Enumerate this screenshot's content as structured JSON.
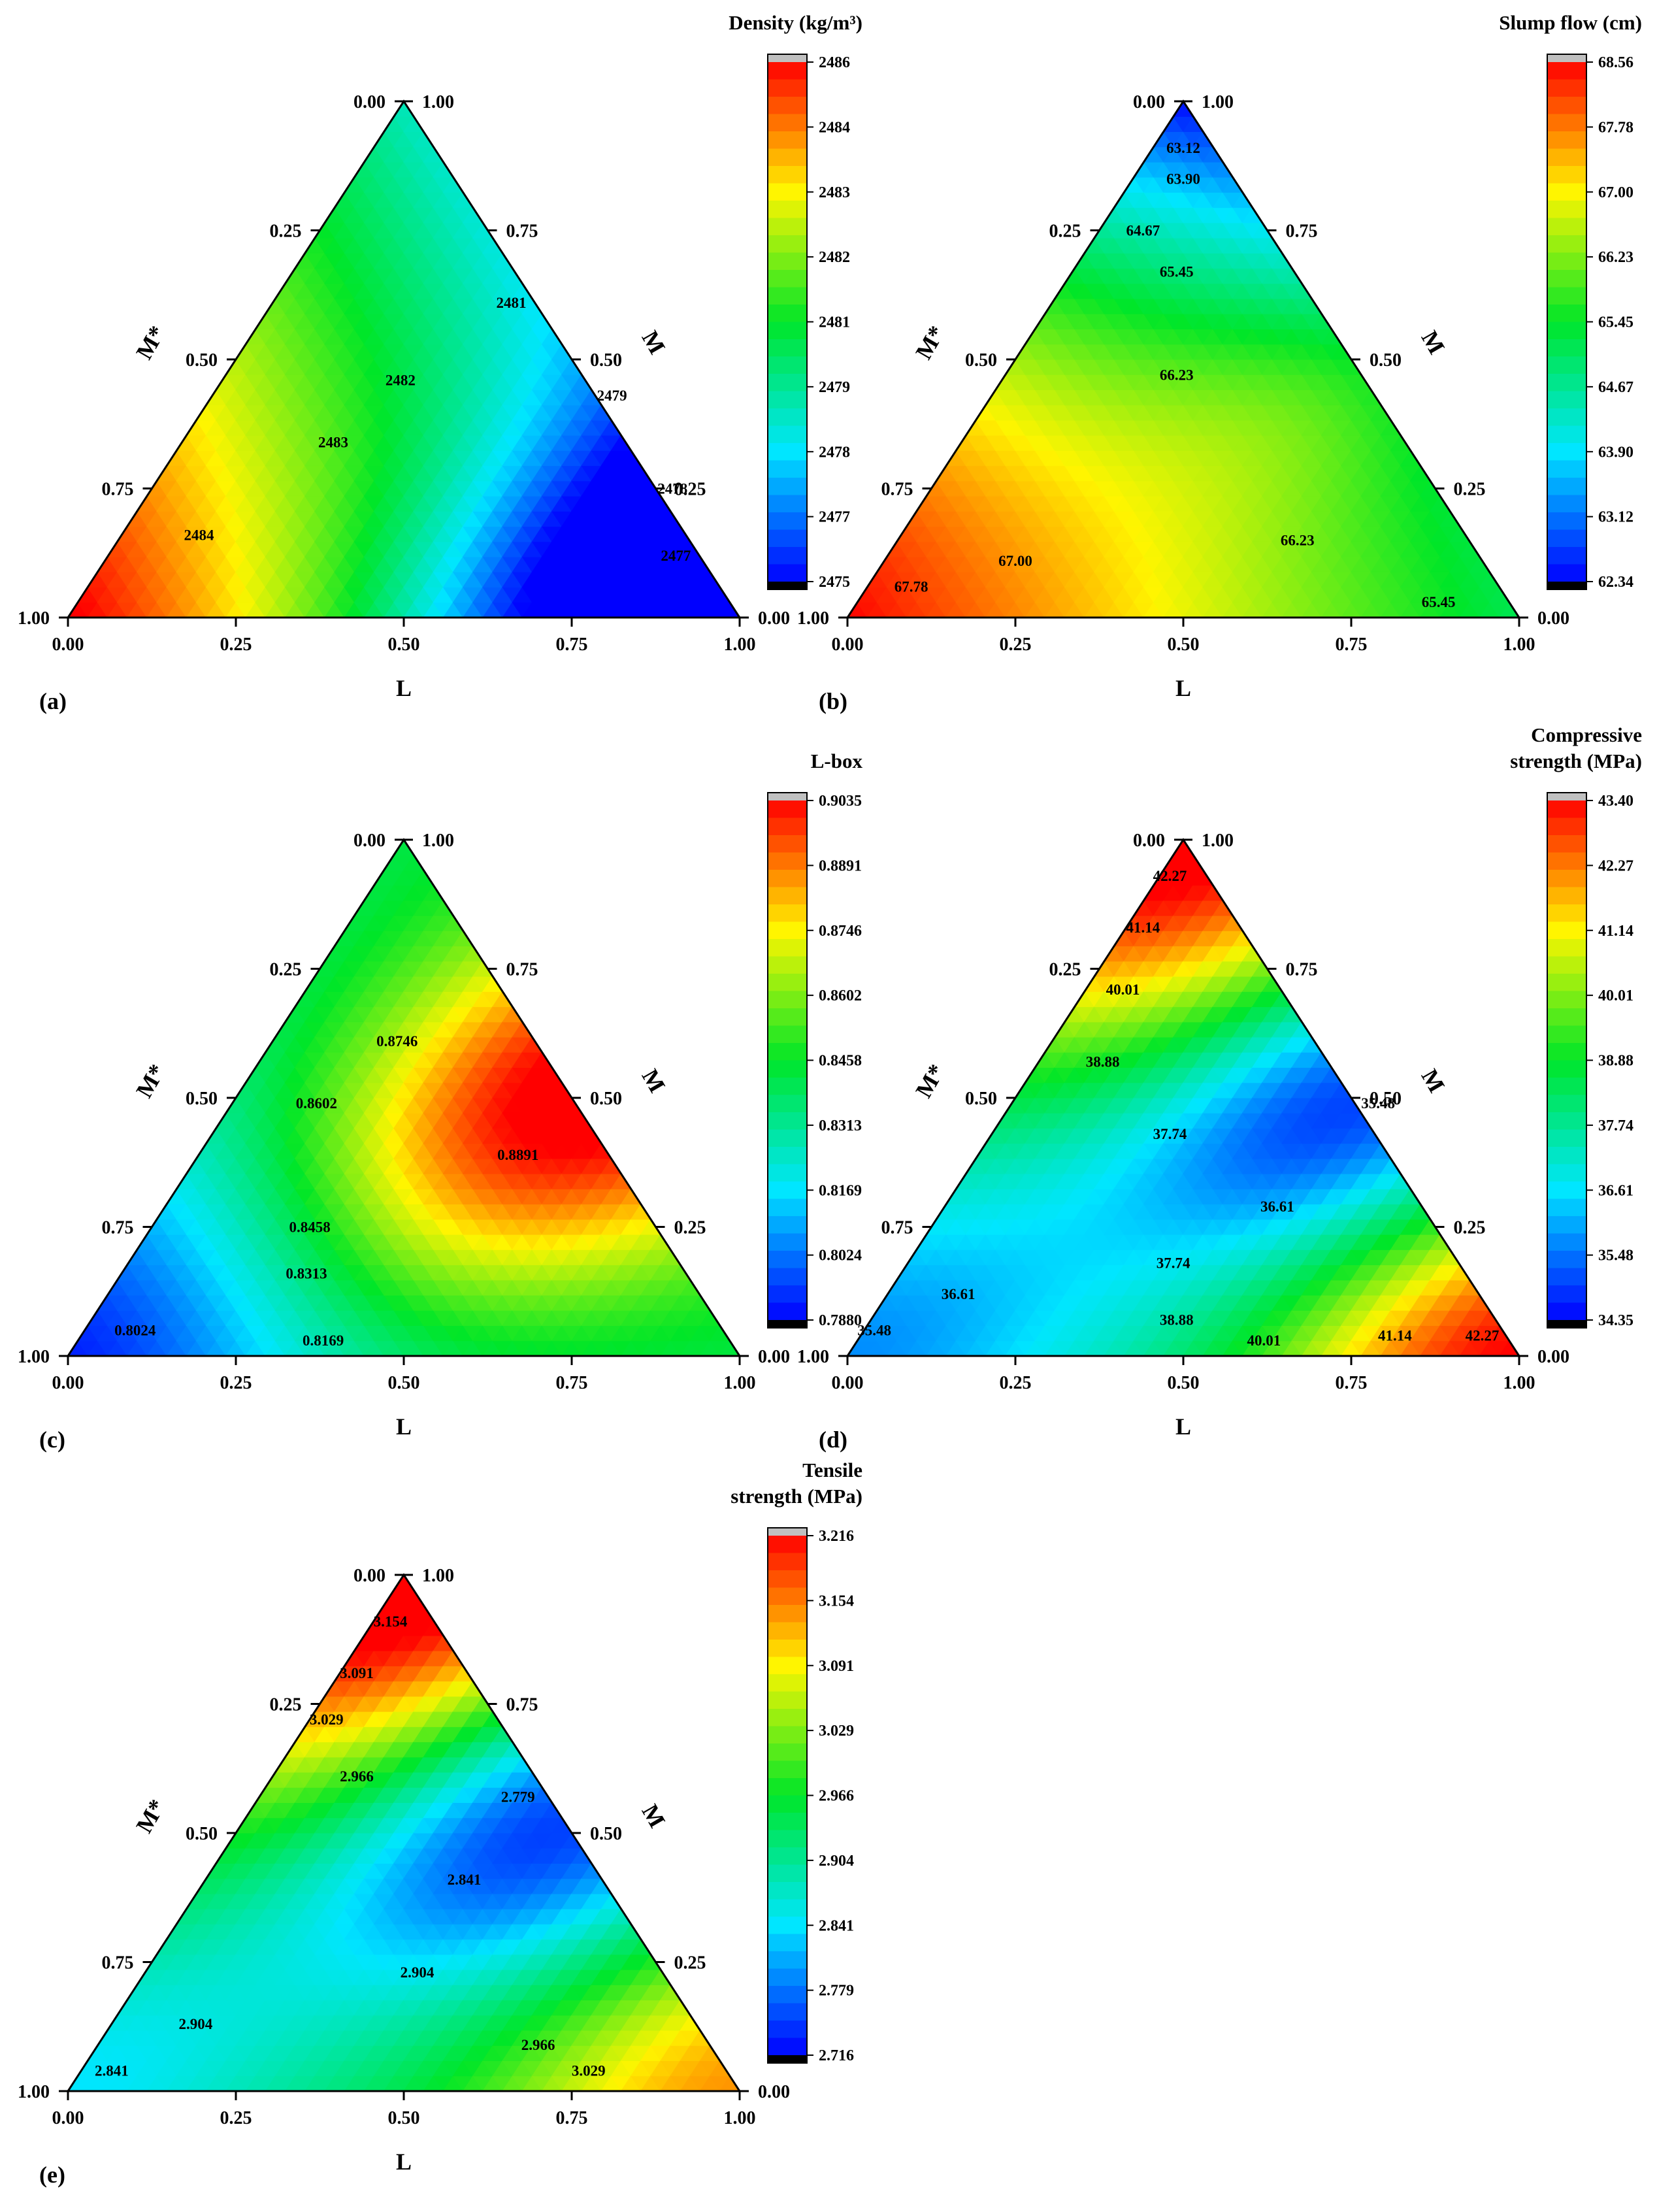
{
  "panels": [
    {
      "id": "a",
      "label": "(a)",
      "colorbar": {
        "title_lines": [
          "Density (kg/m³)"
        ],
        "ticks": [
          "2486",
          "2484",
          "2483",
          "2482",
          "2481",
          "2479",
          "2478",
          "2477",
          "2475"
        ]
      },
      "axes": {
        "bottom": "L",
        "left": "M*",
        "right": "M",
        "bottom_ticks": [
          "0.00",
          "0.25",
          "0.50",
          "0.75",
          "1.00"
        ],
        "left_ticks": [
          "1.00",
          "0.75",
          "0.50",
          "0.25",
          "0.00"
        ],
        "right_ticks": [
          "0.00",
          "0.25",
          "0.50",
          "0.75",
          "1.00"
        ]
      },
      "contour_labels": [
        {
          "text": "2484",
          "L": 0.12,
          "M": 0.15
        },
        {
          "text": "2483",
          "L": 0.23,
          "M": 0.33
        },
        {
          "text": "2482",
          "L": 0.27,
          "M": 0.45
        },
        {
          "text": "2481",
          "L": 0.36,
          "M": 0.6
        },
        {
          "text": "2479",
          "L": 0.6,
          "M": 0.42
        },
        {
          "text": "2478",
          "L": 0.78,
          "M": 0.24
        },
        {
          "text": "2477",
          "L": 0.85,
          "M": 0.11
        }
      ]
    },
    {
      "id": "b",
      "label": "(b)",
      "colorbar": {
        "title_lines": [
          "Slump flow (cm)"
        ],
        "ticks": [
          "68.56",
          "67.78",
          "67.00",
          "66.23",
          "65.45",
          "64.67",
          "63.90",
          "63.12",
          "62.34"
        ]
      },
      "axes": {
        "bottom": "L",
        "left": "M*",
        "right": "M",
        "bottom_ticks": [
          "0.00",
          "0.25",
          "0.50",
          "0.75",
          "1.00"
        ],
        "left_ticks": [
          "1.00",
          "0.75",
          "0.50",
          "0.25",
          "0.00"
        ],
        "right_ticks": [
          "0.00",
          "0.25",
          "0.50",
          "0.75",
          "1.00"
        ]
      },
      "contour_labels": [
        {
          "text": "63.12",
          "L": 0.05,
          "M": 0.9
        },
        {
          "text": "63.90",
          "L": 0.08,
          "M": 0.84
        },
        {
          "text": "64.67",
          "L": 0.07,
          "M": 0.74
        },
        {
          "text": "65.45",
          "L": 0.16,
          "M": 0.66
        },
        {
          "text": "66.23",
          "L": 0.26,
          "M": 0.46
        },
        {
          "text": "67.00",
          "L": 0.2,
          "M": 0.1
        },
        {
          "text": "67.78",
          "L": 0.07,
          "M": 0.05
        },
        {
          "text": "66.23",
          "L": 0.6,
          "M": 0.14
        },
        {
          "text": "65.45",
          "L": 0.87,
          "M": 0.02
        }
      ]
    },
    {
      "id": "c",
      "label": "(c)",
      "colorbar": {
        "title_lines": [
          "L-box"
        ],
        "ticks": [
          "0.9035",
          "0.8891",
          "0.8746",
          "0.8602",
          "0.8458",
          "0.8313",
          "0.8169",
          "0.8024",
          "0.7880"
        ]
      },
      "axes": {
        "bottom": "L",
        "left": "M*",
        "right": "M",
        "bottom_ticks": [
          "0.00",
          "0.25",
          "0.50",
          "0.75",
          "1.00"
        ],
        "left_ticks": [
          "1.00",
          "0.75",
          "0.50",
          "0.25",
          "0.00"
        ],
        "right_ticks": [
          "0.00",
          "0.25",
          "0.50",
          "0.75",
          "1.00"
        ]
      },
      "contour_labels": [
        {
          "text": "0.8746",
          "L": 0.19,
          "M": 0.6
        },
        {
          "text": "0.8891",
          "L": 0.48,
          "M": 0.38
        },
        {
          "text": "0.8602",
          "L": 0.13,
          "M": 0.48
        },
        {
          "text": "0.8458",
          "L": 0.24,
          "M": 0.24
        },
        {
          "text": "0.8313",
          "L": 0.28,
          "M": 0.15
        },
        {
          "text": "0.8024",
          "L": 0.08,
          "M": 0.04
        },
        {
          "text": "0.8169",
          "L": 0.37,
          "M": 0.02
        }
      ]
    },
    {
      "id": "d",
      "label": "(d)",
      "colorbar": {
        "title_lines": [
          "Compressive",
          "strength (MPa)"
        ],
        "ticks": [
          "43.40",
          "42.27",
          "41.14",
          "40.01",
          "38.88",
          "37.74",
          "36.61",
          "35.48",
          "34.35"
        ]
      },
      "axes": {
        "bottom": "L",
        "left": "M*",
        "right": "M",
        "bottom_ticks": [
          "0.00",
          "0.25",
          "0.50",
          "0.75",
          "1.00"
        ],
        "left_ticks": [
          "1.00",
          "0.75",
          "0.50",
          "0.25",
          "0.00"
        ],
        "right_ticks": [
          "0.00",
          "0.25",
          "0.50",
          "0.75",
          "1.00"
        ]
      },
      "contour_labels": [
        {
          "text": "42.27",
          "L": 0.02,
          "M": 0.92
        },
        {
          "text": "41.14",
          "L": 0.03,
          "M": 0.82
        },
        {
          "text": "40.01",
          "L": 0.06,
          "M": 0.7
        },
        {
          "text": "38.88",
          "L": 0.1,
          "M": 0.56
        },
        {
          "text": "37.74",
          "L": 0.27,
          "M": 0.42
        },
        {
          "text": "35.48",
          "L": 0.55,
          "M": 0.48
        },
        {
          "text": "36.61",
          "L": 0.5,
          "M": 0.28
        },
        {
          "text": "36.61",
          "L": 0.11,
          "M": 0.11
        },
        {
          "text": "35.48",
          "L": 0.02,
          "M": 0.04
        },
        {
          "text": "37.74",
          "L": 0.4,
          "M": 0.17
        },
        {
          "text": "38.88",
          "L": 0.46,
          "M": 0.06
        },
        {
          "text": "40.01",
          "L": 0.61,
          "M": 0.02
        },
        {
          "text": "41.14",
          "L": 0.8,
          "M": 0.03
        },
        {
          "text": "42.27",
          "L": 0.93,
          "M": 0.03
        }
      ]
    },
    {
      "id": "e",
      "label": "(e)",
      "colorbar": {
        "title_lines": [
          "Tensile",
          "strength (MPa)"
        ],
        "ticks": [
          "3.216",
          "3.154",
          "3.091",
          "3.029",
          "2.966",
          "2.904",
          "2.841",
          "2.779",
          "2.716"
        ]
      },
      "axes": {
        "bottom": "L",
        "left": "M*",
        "right": "M",
        "bottom_ticks": [
          "0.00",
          "0.25",
          "0.50",
          "0.75",
          "1.00"
        ],
        "left_ticks": [
          "1.00",
          "0.75",
          "0.50",
          "0.25",
          "0.00"
        ],
        "right_ticks": [
          "0.00",
          "0.25",
          "0.50",
          "0.75",
          "1.00"
        ]
      },
      "contour_labels": [
        {
          "text": "3.154",
          "L": 0.03,
          "M": 0.9
        },
        {
          "text": "3.091",
          "L": 0.03,
          "M": 0.8
        },
        {
          "text": "3.029",
          "L": 0.03,
          "M": 0.71
        },
        {
          "text": "2.966",
          "L": 0.13,
          "M": 0.6
        },
        {
          "text": "2.779",
          "L": 0.39,
          "M": 0.56
        },
        {
          "text": "2.841",
          "L": 0.39,
          "M": 0.4
        },
        {
          "text": "2.904",
          "L": 0.41,
          "M": 0.22
        },
        {
          "text": "2.904",
          "L": 0.13,
          "M": 0.12
        },
        {
          "text": "2.841",
          "L": 0.05,
          "M": 0.03
        },
        {
          "text": "2.966",
          "L": 0.66,
          "M": 0.08
        },
        {
          "text": "3.029",
          "L": 0.76,
          "M": 0.03
        }
      ]
    }
  ],
  "chart_data": [
    {
      "type": "heatmap",
      "subtype": "ternary contour",
      "title": "Density (kg/m³)",
      "axes": [
        "L",
        "M",
        "M*"
      ],
      "range": [
        2475,
        2486
      ],
      "levels": [
        2477,
        2478,
        2479,
        2481,
        2482,
        2483,
        2484
      ],
      "trend": "maximum at M*=1 (left vertex), minimum near L=0.75-1.0, M=0"
    },
    {
      "type": "heatmap",
      "subtype": "ternary contour",
      "title": "Slump flow (cm)",
      "axes": [
        "L",
        "M",
        "M*"
      ],
      "range": [
        62.34,
        68.56
      ],
      "levels": [
        63.12,
        63.9,
        64.67,
        65.45,
        66.23,
        67.0,
        67.78
      ],
      "trend": "maximum at M*=1, minimum at M=1 (top vertex)"
    },
    {
      "type": "heatmap",
      "subtype": "ternary contour",
      "title": "L-box",
      "axes": [
        "L",
        "M",
        "M*"
      ],
      "range": [
        0.788,
        0.9035
      ],
      "levels": [
        0.8024,
        0.8169,
        0.8313,
        0.8458,
        0.8602,
        0.8746,
        0.8891
      ],
      "trend": "maximum near L=0.5, M=0.5 edge; minimum at M*=1"
    },
    {
      "type": "heatmap",
      "subtype": "ternary contour",
      "title": "Compressive strength (MPa)",
      "axes": [
        "L",
        "M",
        "M*"
      ],
      "range": [
        34.35,
        43.4
      ],
      "levels": [
        35.48,
        36.61,
        37.74,
        38.88,
        40.01,
        41.14,
        42.27
      ],
      "trend": "maxima at M=1 and L=1 vertices; minima near L=0.5, M=0.5 edge and M*=1"
    },
    {
      "type": "heatmap",
      "subtype": "ternary contour",
      "title": "Tensile strength (MPa)",
      "axes": [
        "L",
        "M",
        "M*"
      ],
      "range": [
        2.716,
        3.216
      ],
      "levels": [
        2.779,
        2.841,
        2.904,
        2.966,
        3.029,
        3.091,
        3.154
      ],
      "trend": "maximum at M=1 vertex, high near L=1; minimum near L=0.5, M=0.5 edge"
    }
  ],
  "colors": {
    "scale": [
      "#0000ff",
      "#00ffff",
      "#00ff00",
      "#ffff00",
      "#ff0000"
    ],
    "cb_top": "#c0c0c0",
    "cb_bottom": "#000000"
  }
}
